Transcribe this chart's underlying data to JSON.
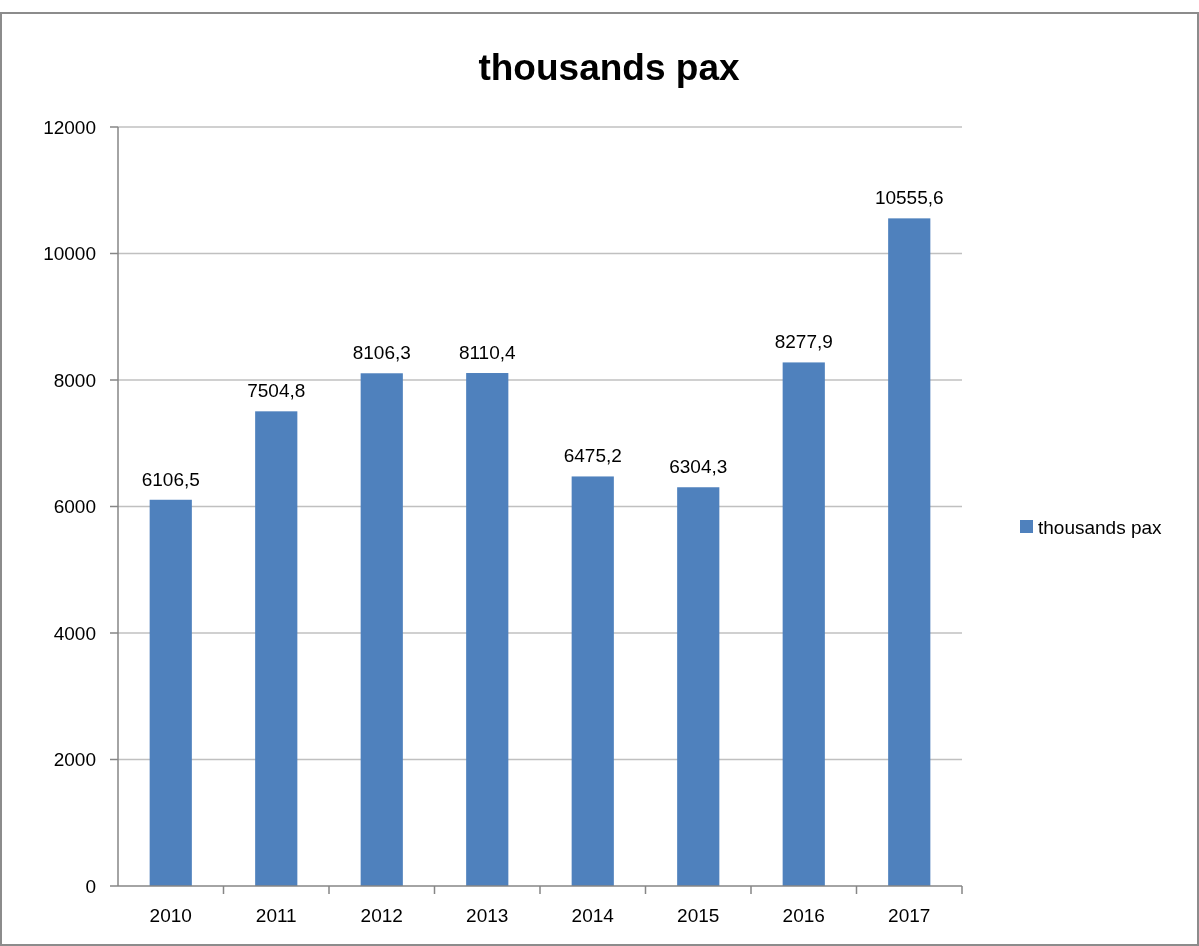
{
  "chart_data": {
    "type": "bar",
    "title": "thousands pax",
    "categories": [
      "2010",
      "2011",
      "2012",
      "2013",
      "2014",
      "2015",
      "2016",
      "2017"
    ],
    "series": [
      {
        "name": "thousands pax",
        "color": "#4f81bd",
        "values": [
          6106.5,
          7504.8,
          8106.3,
          8110.4,
          6475.2,
          6304.3,
          8277.9,
          10555.6
        ],
        "value_labels": [
          "6106,5",
          "7504,8",
          "8106,3",
          "8110,4",
          "6475,2",
          "6304,3",
          "8277,9",
          "10555,6"
        ]
      }
    ],
    "ylim": [
      0,
      12000
    ],
    "yticks": [
      0,
      2000,
      4000,
      6000,
      8000,
      10000,
      12000
    ],
    "grid": "y",
    "legend": "right"
  }
}
